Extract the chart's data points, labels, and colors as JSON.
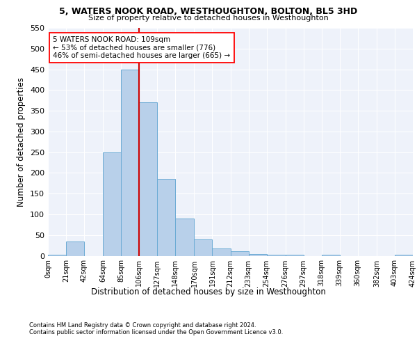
{
  "title1": "5, WATERS NOOK ROAD, WESTHOUGHTON, BOLTON, BL5 3HD",
  "title2": "Size of property relative to detached houses in Westhoughton",
  "xlabel": "Distribution of detached houses by size in Westhoughton",
  "ylabel": "Number of detached properties",
  "bar_color": "#b8d0ea",
  "bar_edge_color": "#6aaad4",
  "vline_x": 106,
  "vline_color": "#cc0000",
  "annotation_lines": [
    "5 WATERS NOOK ROAD: 109sqm",
    "← 53% of detached houses are smaller (776)",
    "46% of semi-detached houses are larger (665) →"
  ],
  "bin_edges": [
    0,
    21,
    42,
    64,
    85,
    106,
    127,
    148,
    170,
    191,
    212,
    233,
    254,
    276,
    297,
    318,
    339,
    360,
    382,
    403,
    424
  ],
  "bar_heights": [
    3,
    35,
    0,
    250,
    450,
    370,
    185,
    90,
    40,
    18,
    11,
    5,
    2,
    3,
    0,
    3,
    0,
    0,
    0,
    3
  ],
  "ylim": [
    0,
    550
  ],
  "yticks": [
    0,
    50,
    100,
    150,
    200,
    250,
    300,
    350,
    400,
    450,
    500,
    550
  ],
  "footnote1": "Contains HM Land Registry data © Crown copyright and database right 2024.",
  "footnote2": "Contains public sector information licensed under the Open Government Licence v3.0.",
  "background_color": "#eef2fa",
  "grid_color": "#ffffff"
}
